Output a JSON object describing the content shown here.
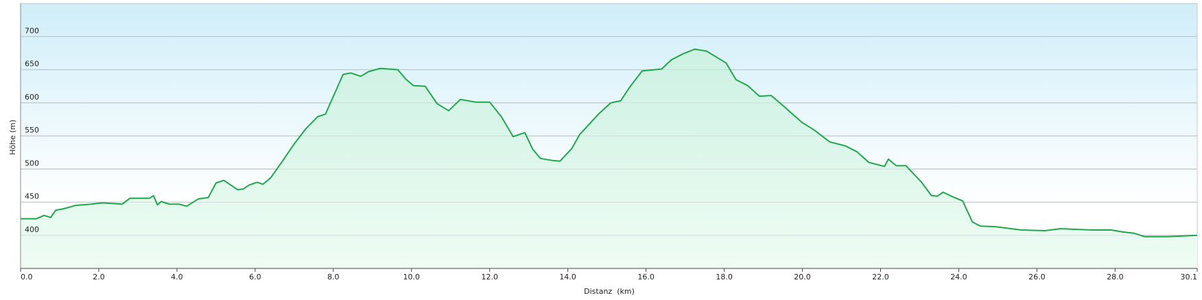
{
  "chart_data": {
    "type": "area",
    "title": "",
    "xlabel": "Distanz  (km)",
    "ylabel": "Höhe (m)",
    "xlim": [
      0,
      30.1
    ],
    "ylim": [
      350,
      750
    ],
    "grid": true,
    "x_ticks": [
      "0.0",
      "2.0",
      "4.0",
      "6.0",
      "8.0",
      "10.0",
      "12.0",
      "14.0",
      "16.0",
      "18.0",
      "20.0",
      "22.0",
      "24.0",
      "26.0",
      "28.0",
      "30.1"
    ],
    "x_tick_values": [
      0,
      2,
      4,
      6,
      8,
      10,
      12,
      14,
      16,
      18,
      20,
      22,
      24,
      26,
      28,
      30.1
    ],
    "y_ticks": [
      "400",
      "450",
      "500",
      "550",
      "600",
      "650",
      "700"
    ],
    "y_tick_values": [
      400,
      450,
      500,
      550,
      600,
      650,
      700
    ],
    "colors": {
      "line": "#1fa84a",
      "fill_top": "#cdf1e3",
      "fill_bottom": "#effcf4",
      "bg_top": "#d0eef9",
      "bg_bottom": "#ffffff",
      "grid": "#c8cdd0"
    },
    "series": [
      {
        "x": [
          0,
          0.4,
          0.6,
          0.77,
          0.9,
          1.1,
          1.4,
          1.8,
          2.1,
          2.6,
          2.8,
          3.3,
          3.4,
          3.5,
          3.6,
          3.8,
          4.05,
          4.25,
          4.55,
          4.8,
          5.0,
          5.2,
          5.55,
          5.7,
          5.85,
          6.05,
          6.2,
          6.4,
          6.7,
          7.0,
          7.3,
          7.6,
          7.8,
          8.1,
          8.25,
          8.45,
          8.7,
          8.9,
          9.2,
          9.65,
          9.85,
          10.05,
          10.35,
          10.65,
          10.95,
          11.25,
          11.65,
          12.0,
          12.3,
          12.6,
          12.9,
          13.1,
          13.3,
          13.6,
          13.8,
          14.1,
          14.3,
          14.8,
          15.1,
          15.35,
          15.6,
          15.9,
          16.4,
          16.65,
          16.95,
          17.25,
          17.55,
          18.05,
          18.3,
          18.6,
          18.9,
          19.2,
          19.5,
          20.0,
          20.3,
          20.7,
          21.1,
          21.4,
          21.7,
          22.1,
          22.2,
          22.4,
          22.65,
          23.05,
          23.3,
          23.45,
          23.6,
          23.85,
          24.1,
          24.35,
          24.55,
          24.95,
          25.6,
          26.2,
          26.6,
          27.4,
          27.9,
          28.2,
          28.5,
          28.75,
          29.35,
          30.1
        ],
        "y": [
          425,
          425,
          430,
          427,
          438,
          440,
          445,
          447,
          449,
          447,
          456,
          456,
          460,
          446,
          451,
          447,
          447,
          444,
          455,
          457,
          479,
          483,
          469,
          470,
          476,
          480,
          477,
          487,
          512,
          538,
          561,
          579,
          583,
          623,
          643,
          645,
          640,
          647,
          652,
          650,
          636,
          626,
          625,
          599,
          588,
          605,
          601,
          601,
          579,
          549,
          555,
          530,
          516,
          513,
          512,
          531,
          552,
          584,
          600,
          603,
          625,
          648,
          651,
          665,
          674,
          681,
          678,
          660,
          635,
          626,
          610,
          611,
          596,
          570,
          559,
          541,
          535,
          526,
          510,
          504,
          515,
          505,
          505,
          480,
          460,
          459,
          465,
          458,
          452,
          420,
          414,
          413,
          408,
          407,
          410,
          408,
          408,
          405,
          403,
          398,
          398,
          400
        ]
      }
    ]
  }
}
